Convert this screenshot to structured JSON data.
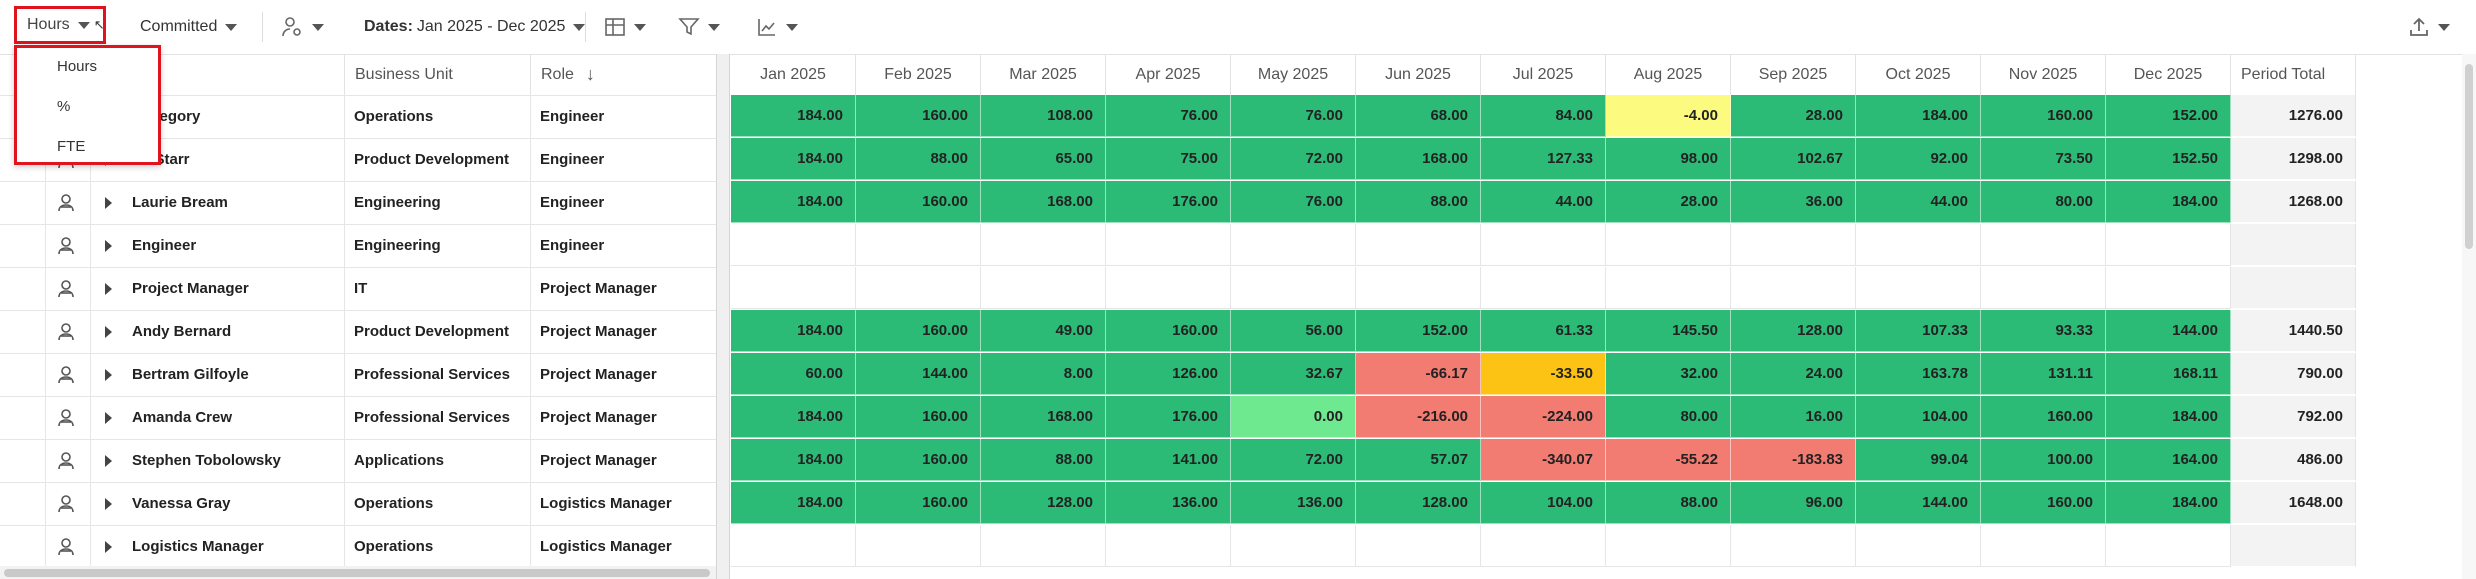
{
  "toolbar": {
    "units_label": "Hours",
    "committed_label": "Committed",
    "dates_prefix": "Dates:",
    "dates_value": "Jan 2025 - Dec 2025"
  },
  "units_menu": [
    "Hours",
    "%",
    "FTE"
  ],
  "columns": {
    "business_unit": "Business Unit",
    "role": "Role"
  },
  "months": [
    "Jan 2025",
    "Feb 2025",
    "Mar 2025",
    "Apr 2025",
    "May 2025",
    "Jun 2025",
    "Jul 2025",
    "Aug 2025",
    "Sep 2025",
    "Oct 2025",
    "Nov 2025",
    "Dec 2025"
  ],
  "period_total_label": "Period Total",
  "colors": {
    "green": "#2cbb77",
    "light_green": "#6fe990",
    "red": "#f27b72",
    "yellow": "#fdfa80",
    "orange": "#fcc214",
    "highlight": "#e0141e"
  },
  "rows": [
    {
      "name": "r Gregory",
      "bu": "Operations",
      "role": "Engineer",
      "values": [
        "184.00",
        "160.00",
        "108.00",
        "76.00",
        "76.00",
        "68.00",
        "84.00",
        "-4.00",
        "28.00",
        "184.00",
        "160.00",
        "152.00"
      ],
      "colors": [
        "green",
        "green",
        "green",
        "green",
        "green",
        "green",
        "green",
        "yellow",
        "green",
        "green",
        "green",
        "green"
      ],
      "total": "1276.00"
    },
    {
      "name": "tin Starr",
      "bu": "Product Development",
      "role": "Engineer",
      "values": [
        "184.00",
        "88.00",
        "65.00",
        "75.00",
        "72.00",
        "168.00",
        "127.33",
        "98.00",
        "102.67",
        "92.00",
        "73.50",
        "152.50"
      ],
      "colors": [
        "green",
        "green",
        "green",
        "green",
        "green",
        "green",
        "green",
        "green",
        "green",
        "green",
        "green",
        "green"
      ],
      "total": "1298.00"
    },
    {
      "name": "Laurie Bream",
      "bu": "Engineering",
      "role": "Engineer",
      "values": [
        "184.00",
        "160.00",
        "168.00",
        "176.00",
        "76.00",
        "88.00",
        "44.00",
        "28.00",
        "36.00",
        "44.00",
        "80.00",
        "184.00"
      ],
      "colors": [
        "green",
        "green",
        "green",
        "green",
        "green",
        "green",
        "green",
        "green",
        "green",
        "green",
        "green",
        "green"
      ],
      "total": "1268.00"
    },
    {
      "name": "Engineer",
      "bu": "Engineering",
      "role": "Engineer",
      "values": [],
      "colors": [],
      "total": ""
    },
    {
      "name": "Project Manager",
      "bu": "IT",
      "role": "Project Manager",
      "values": [],
      "colors": [],
      "total": ""
    },
    {
      "name": "Andy Bernard",
      "bu": "Product Development",
      "role": "Project Manager",
      "values": [
        "184.00",
        "160.00",
        "49.00",
        "160.00",
        "56.00",
        "152.00",
        "61.33",
        "145.50",
        "128.00",
        "107.33",
        "93.33",
        "144.00"
      ],
      "colors": [
        "green",
        "green",
        "green",
        "green",
        "green",
        "green",
        "green",
        "green",
        "green",
        "green",
        "green",
        "green"
      ],
      "total": "1440.50"
    },
    {
      "name": "Bertram Gilfoyle",
      "bu": "Professional Services",
      "role": "Project Manager",
      "values": [
        "60.00",
        "144.00",
        "8.00",
        "126.00",
        "32.67",
        "-66.17",
        "-33.50",
        "32.00",
        "24.00",
        "163.78",
        "131.11",
        "168.11"
      ],
      "colors": [
        "green",
        "green",
        "green",
        "green",
        "green",
        "red",
        "orange",
        "green",
        "green",
        "green",
        "green",
        "green"
      ],
      "total": "790.00"
    },
    {
      "name": "Amanda Crew",
      "bu": "Professional Services",
      "role": "Project Manager",
      "values": [
        "184.00",
        "160.00",
        "168.00",
        "176.00",
        "0.00",
        "-216.00",
        "-224.00",
        "80.00",
        "16.00",
        "104.00",
        "160.00",
        "184.00"
      ],
      "colors": [
        "green",
        "green",
        "green",
        "green",
        "light_green",
        "red",
        "red",
        "green",
        "green",
        "green",
        "green",
        "green"
      ],
      "total": "792.00"
    },
    {
      "name": "Stephen Tobolowsky",
      "bu": "Applications",
      "role": "Project Manager",
      "values": [
        "184.00",
        "160.00",
        "88.00",
        "141.00",
        "72.00",
        "57.07",
        "-340.07",
        "-55.22",
        "-183.83",
        "99.04",
        "100.00",
        "164.00"
      ],
      "colors": [
        "green",
        "green",
        "green",
        "green",
        "green",
        "green",
        "red",
        "red",
        "red",
        "green",
        "green",
        "green"
      ],
      "total": "486.00"
    },
    {
      "name": "Vanessa Gray",
      "bu": "Operations",
      "role": "Logistics Manager",
      "values": [
        "184.00",
        "160.00",
        "128.00",
        "136.00",
        "136.00",
        "128.00",
        "104.00",
        "88.00",
        "96.00",
        "144.00",
        "160.00",
        "184.00"
      ],
      "colors": [
        "green",
        "green",
        "green",
        "green",
        "green",
        "green",
        "green",
        "green",
        "green",
        "green",
        "green",
        "green"
      ],
      "total": "1648.00"
    },
    {
      "name": "Logistics Manager",
      "bu": "Operations",
      "role": "Logistics Manager",
      "values": [],
      "colors": [],
      "total": ""
    }
  ]
}
